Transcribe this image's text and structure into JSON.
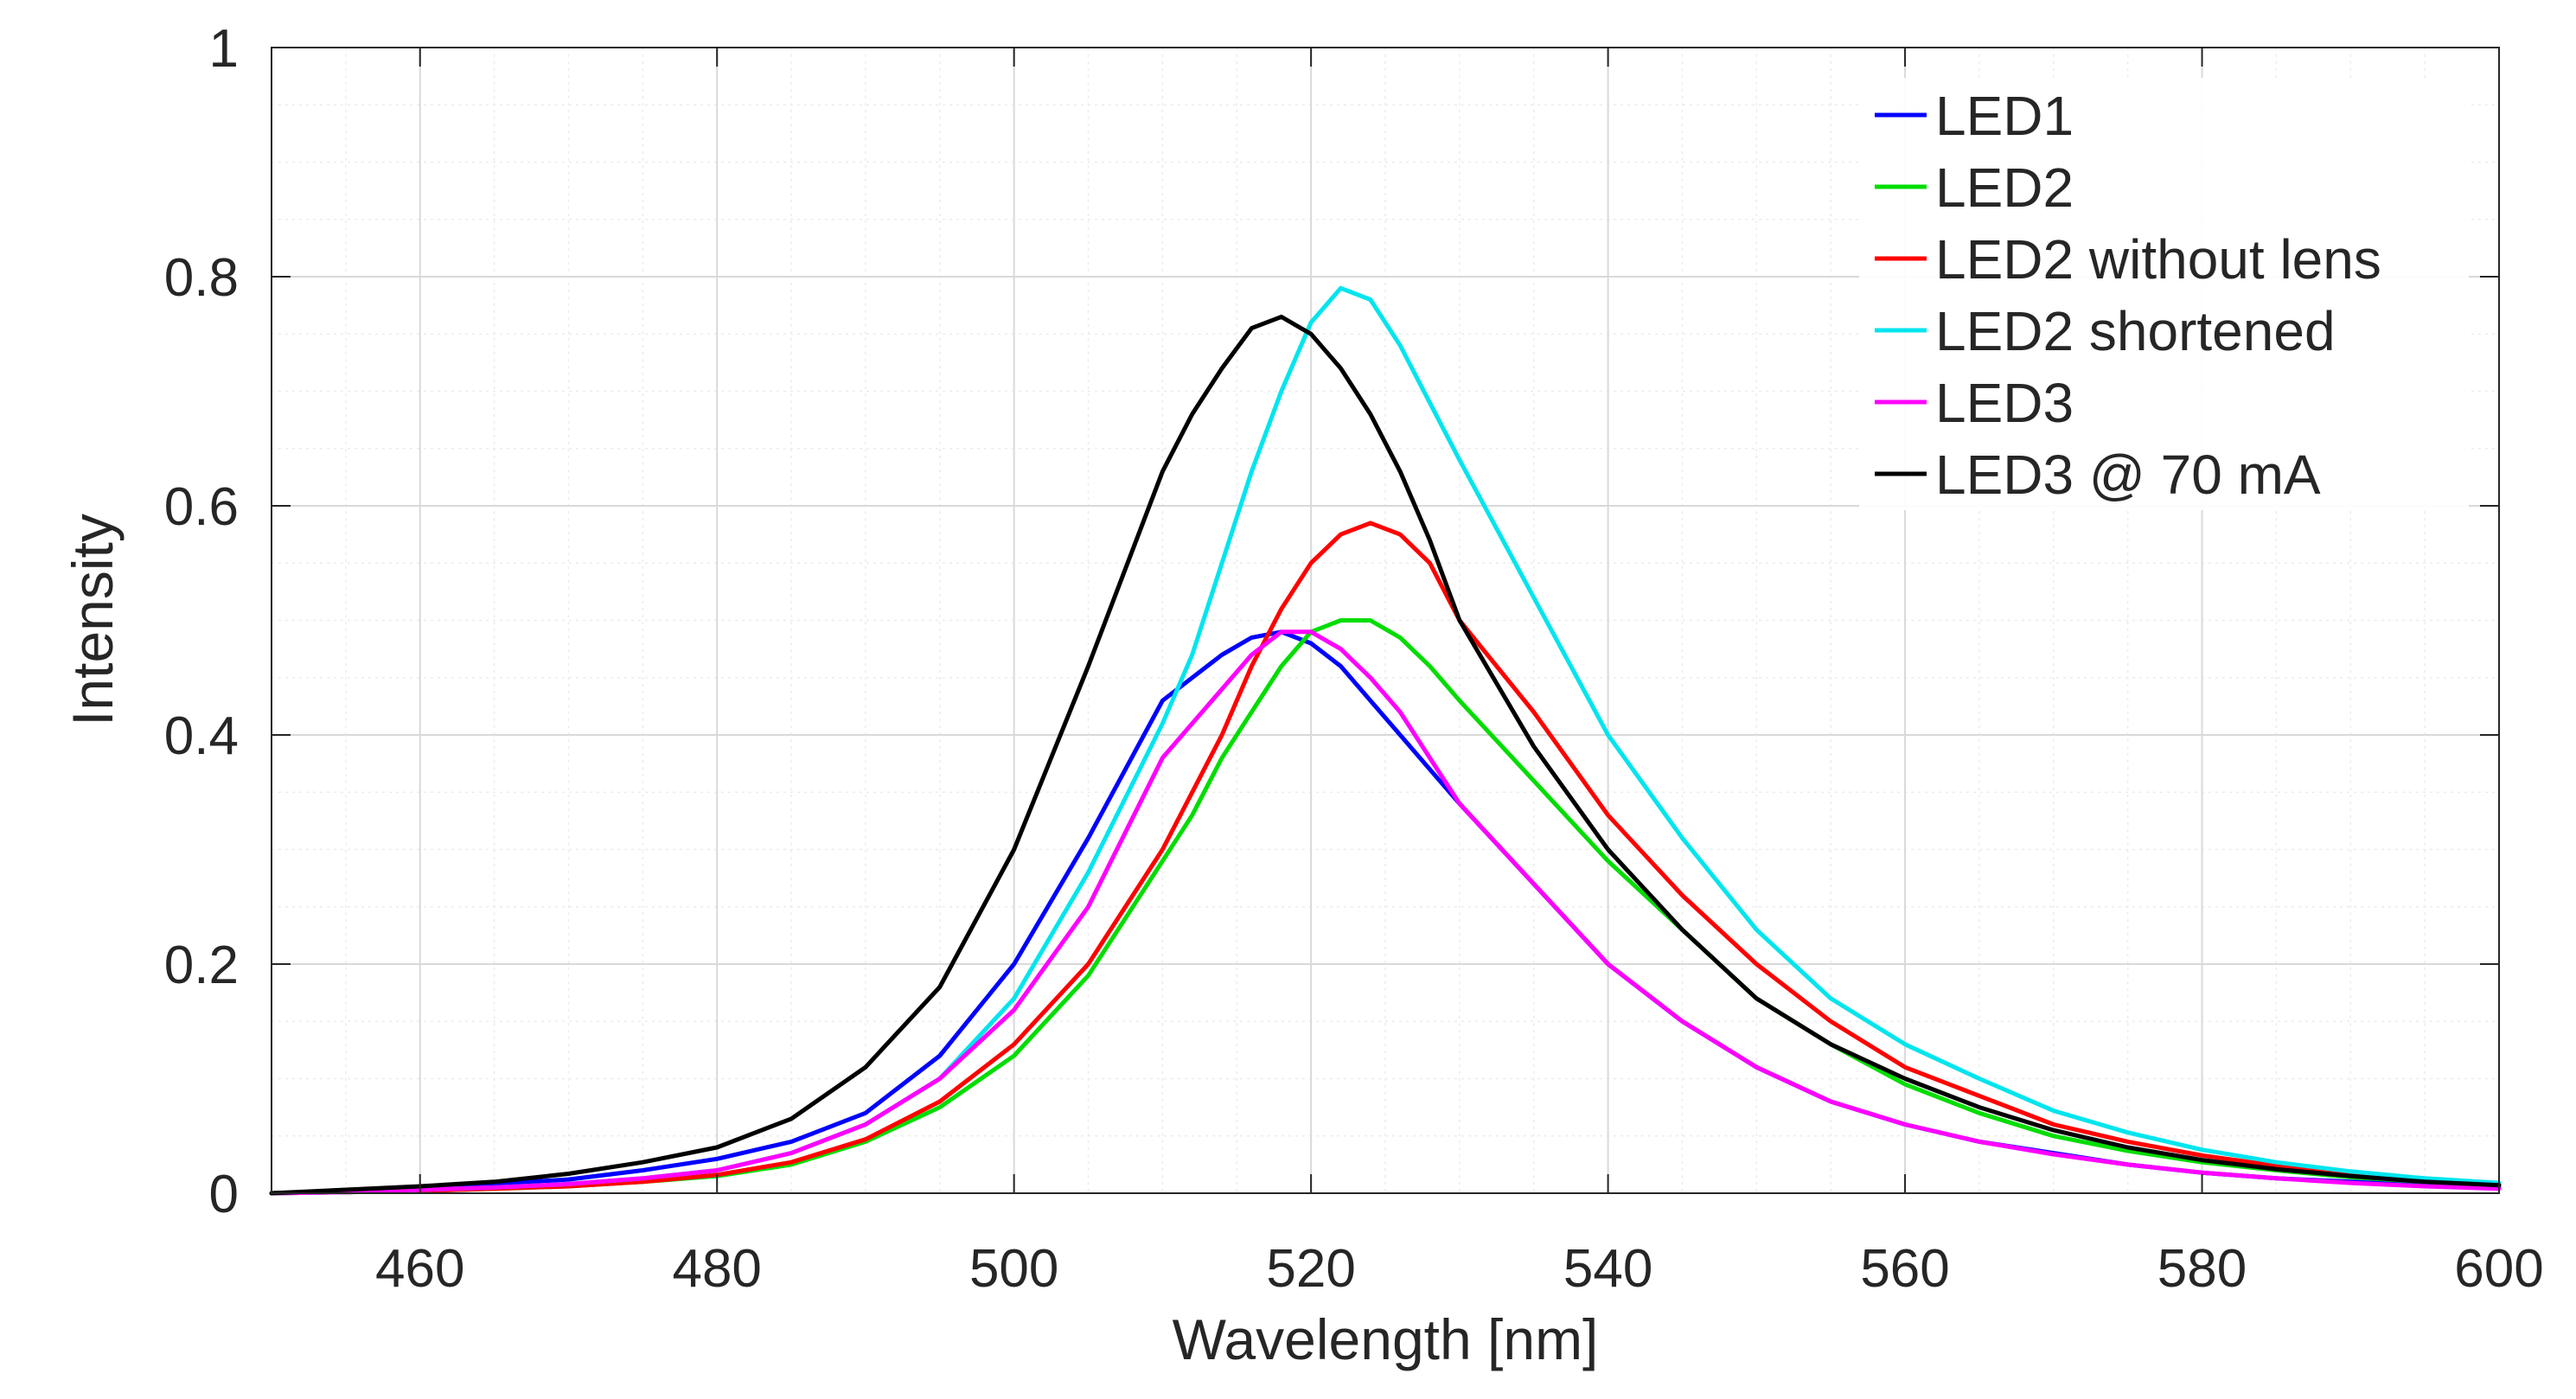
{
  "chart_data": {
    "type": "line",
    "title": "",
    "xlabel": "Wavelength [nm]",
    "ylabel": "Intensity",
    "xlim": [
      450,
      600
    ],
    "ylim": [
      0,
      1
    ],
    "x_ticks": [
      460,
      480,
      500,
      520,
      540,
      560,
      580,
      600
    ],
    "x_tick_labels": [
      "460",
      "480",
      "500",
      "520",
      "540",
      "560",
      "580",
      "600"
    ],
    "y_ticks": [
      0,
      0.2,
      0.4,
      0.6,
      0.8,
      1
    ],
    "y_tick_labels": [
      "0",
      "0.2",
      "0.4",
      "0.6",
      "0.8",
      "1"
    ],
    "grid": "major and minor",
    "legend_position": "top-right",
    "x": [
      450,
      455,
      460,
      465,
      470,
      475,
      480,
      485,
      490,
      495,
      500,
      505,
      510,
      512,
      514,
      516,
      518,
      520,
      522,
      524,
      526,
      528,
      530,
      535,
      540,
      545,
      550,
      555,
      560,
      565,
      570,
      575,
      580,
      585,
      590,
      595,
      600
    ],
    "series": [
      {
        "name": "LED1",
        "color": "#0000ff",
        "values": [
          0.0,
          0.002,
          0.005,
          0.008,
          0.012,
          0.02,
          0.03,
          0.045,
          0.07,
          0.12,
          0.2,
          0.31,
          0.43,
          0.45,
          0.47,
          0.485,
          0.49,
          0.48,
          0.46,
          0.43,
          0.4,
          0.37,
          0.34,
          0.27,
          0.2,
          0.15,
          0.11,
          0.08,
          0.06,
          0.045,
          0.035,
          0.025,
          0.018,
          0.013,
          0.01,
          0.007,
          0.005
        ]
      },
      {
        "name": "LED2",
        "color": "#00dd00",
        "values": [
          0.0,
          0.001,
          0.002,
          0.004,
          0.006,
          0.01,
          0.015,
          0.025,
          0.045,
          0.075,
          0.12,
          0.19,
          0.29,
          0.33,
          0.38,
          0.42,
          0.46,
          0.49,
          0.5,
          0.5,
          0.485,
          0.46,
          0.43,
          0.36,
          0.29,
          0.23,
          0.17,
          0.13,
          0.095,
          0.07,
          0.05,
          0.037,
          0.027,
          0.02,
          0.014,
          0.01,
          0.007
        ]
      },
      {
        "name": "LED2 without lens",
        "color": "#ff0000",
        "values": [
          0.0,
          0.001,
          0.002,
          0.004,
          0.006,
          0.01,
          0.016,
          0.027,
          0.047,
          0.08,
          0.13,
          0.2,
          0.3,
          0.35,
          0.4,
          0.46,
          0.51,
          0.55,
          0.575,
          0.585,
          0.575,
          0.55,
          0.5,
          0.42,
          0.33,
          0.26,
          0.2,
          0.15,
          0.11,
          0.085,
          0.06,
          0.045,
          0.033,
          0.024,
          0.017,
          0.012,
          0.008
        ]
      },
      {
        "name": "LED2 shortened",
        "color": "#00e5ee",
        "values": [
          0.0,
          0.001,
          0.003,
          0.005,
          0.008,
          0.013,
          0.02,
          0.035,
          0.06,
          0.1,
          0.17,
          0.28,
          0.41,
          0.47,
          0.55,
          0.63,
          0.7,
          0.76,
          0.79,
          0.78,
          0.74,
          0.69,
          0.64,
          0.52,
          0.4,
          0.31,
          0.23,
          0.17,
          0.13,
          0.1,
          0.072,
          0.053,
          0.038,
          0.027,
          0.019,
          0.013,
          0.009
        ]
      },
      {
        "name": "LED3",
        "color": "#ff00ff",
        "values": [
          0.0,
          0.001,
          0.003,
          0.005,
          0.008,
          0.013,
          0.02,
          0.035,
          0.06,
          0.1,
          0.16,
          0.25,
          0.38,
          0.41,
          0.44,
          0.47,
          0.49,
          0.49,
          0.475,
          0.45,
          0.42,
          0.38,
          0.34,
          0.27,
          0.2,
          0.15,
          0.11,
          0.08,
          0.06,
          0.045,
          0.034,
          0.025,
          0.018,
          0.013,
          0.009,
          0.006,
          0.004
        ]
      },
      {
        "name": "LED3 @ 70 mA",
        "color": "#000000",
        "values": [
          0.0,
          0.003,
          0.006,
          0.01,
          0.017,
          0.027,
          0.04,
          0.065,
          0.11,
          0.18,
          0.3,
          0.46,
          0.63,
          0.68,
          0.72,
          0.755,
          0.765,
          0.75,
          0.72,
          0.68,
          0.63,
          0.57,
          0.5,
          0.39,
          0.3,
          0.23,
          0.17,
          0.13,
          0.1,
          0.075,
          0.055,
          0.04,
          0.029,
          0.021,
          0.015,
          0.01,
          0.007
        ]
      }
    ]
  }
}
